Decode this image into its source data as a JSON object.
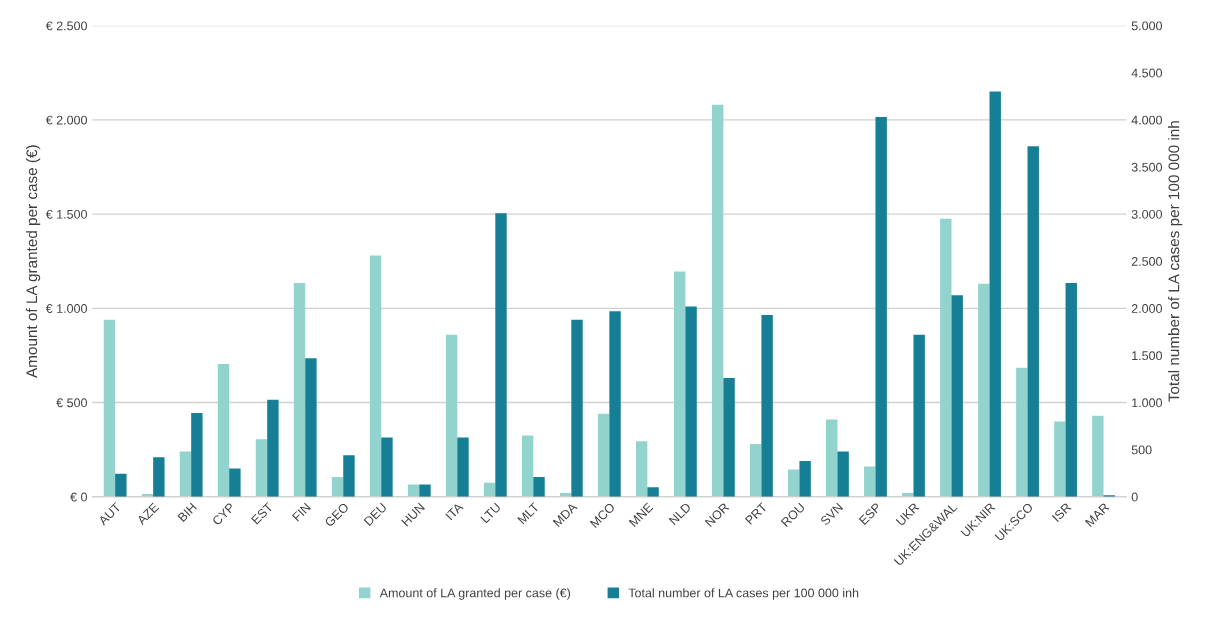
{
  "chart_data": {
    "type": "bar",
    "ylabel": "Amount of LA granted per case (€)",
    "y2label": "Total number of LA cases per 100 000 inh",
    "categories": [
      "AUT",
      "AZE",
      "BIH",
      "CYP",
      "EST",
      "FIN",
      "GEO",
      "DEU",
      "HUN",
      "ITA",
      "LTU",
      "MLT",
      "MDA",
      "MCO",
      "MNE",
      "NLD",
      "NOR",
      "PRT",
      "ROU",
      "SVN",
      "ESP",
      "UKR",
      "UK:ENG&WAL",
      "UK:NIR",
      "UK:SCO",
      "ISR",
      "MAR"
    ],
    "series": [
      {
        "name": "Amount of LA granted per case (€)",
        "color": "#92d3ce",
        "values": [
          940,
          15,
          240,
          705,
          305,
          1135,
          105,
          1280,
          65,
          860,
          75,
          325,
          20,
          440,
          295,
          1195,
          2080,
          280,
          145,
          410,
          160,
          20,
          1475,
          1130,
          685,
          400,
          430
        ]
      },
      {
        "name": "Total number of LA cases per 100 000 inh",
        "color": "#167f96",
        "axis": "y2",
        "values": [
          245,
          420,
          890,
          300,
          1030,
          1470,
          440,
          630,
          130,
          630,
          3010,
          210,
          1880,
          1970,
          100,
          2020,
          1260,
          1930,
          380,
          480,
          4030,
          1720,
          2140,
          4300,
          3720,
          2270,
          15
        ]
      }
    ],
    "ylim": [
      0,
      2500
    ],
    "yticks": [
      {
        "value": 0,
        "label": "€ 0"
      },
      {
        "value": 500,
        "label": "€ 500"
      },
      {
        "value": 1000,
        "label": "€ 1.000"
      },
      {
        "value": 1500,
        "label": "€ 1.500"
      },
      {
        "value": 2000,
        "label": "€ 2.000"
      },
      {
        "value": 2500,
        "label": "€ 2.500"
      }
    ],
    "y2lim": [
      0,
      5000
    ],
    "y2ticks": [
      0,
      500,
      {
        "value": 1000,
        "label": "1.000"
      },
      {
        "value": 1500,
        "label": "1.500"
      },
      {
        "value": 2000,
        "label": "2.000"
      },
      {
        "value": 2500,
        "label": "2.500"
      },
      {
        "value": 3000,
        "label": "3.000"
      },
      {
        "value": 3500,
        "label": "3.500"
      },
      {
        "value": 4000,
        "label": "4.000"
      },
      {
        "value": 4500,
        "label": "4.500"
      },
      {
        "value": 5000,
        "label": "5.000"
      }
    ],
    "grid": "y",
    "legend": "bottom"
  }
}
